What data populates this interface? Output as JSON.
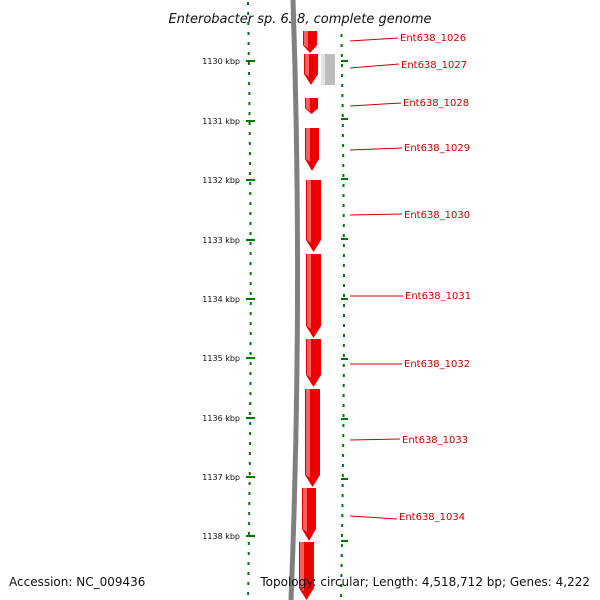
{
  "title": "Enterobacter sp. 638, complete genome",
  "scale": {
    "ticks": [
      "1130 kbp",
      "1131 kbp",
      "1132 kbp",
      "1133 kbp",
      "1134 kbp",
      "1135 kbp",
      "1136 kbp",
      "1137 kbp",
      "1138 kbp"
    ]
  },
  "genes": [
    {
      "name": "Ent638_1026"
    },
    {
      "name": "Ent638_1027"
    },
    {
      "name": "Ent638_1028"
    },
    {
      "name": "Ent638_1029"
    },
    {
      "name": "Ent638_1030"
    },
    {
      "name": "Ent638_1031"
    },
    {
      "name": "Ent638_1032"
    },
    {
      "name": "Ent638_1033"
    },
    {
      "name": "Ent638_1034"
    }
  ],
  "colors": {
    "gene": "#ee0000",
    "gene_highlight": "#ff6a6a",
    "other_feature": "#bdbdbd",
    "backbone": "#808080",
    "ticks": "#007700",
    "label": "#cc0000"
  },
  "footer": {
    "accession": "Accession: NC_009436",
    "topology": "Topology: circular; Length: 4,518,712 bp; Genes: 4,222"
  }
}
